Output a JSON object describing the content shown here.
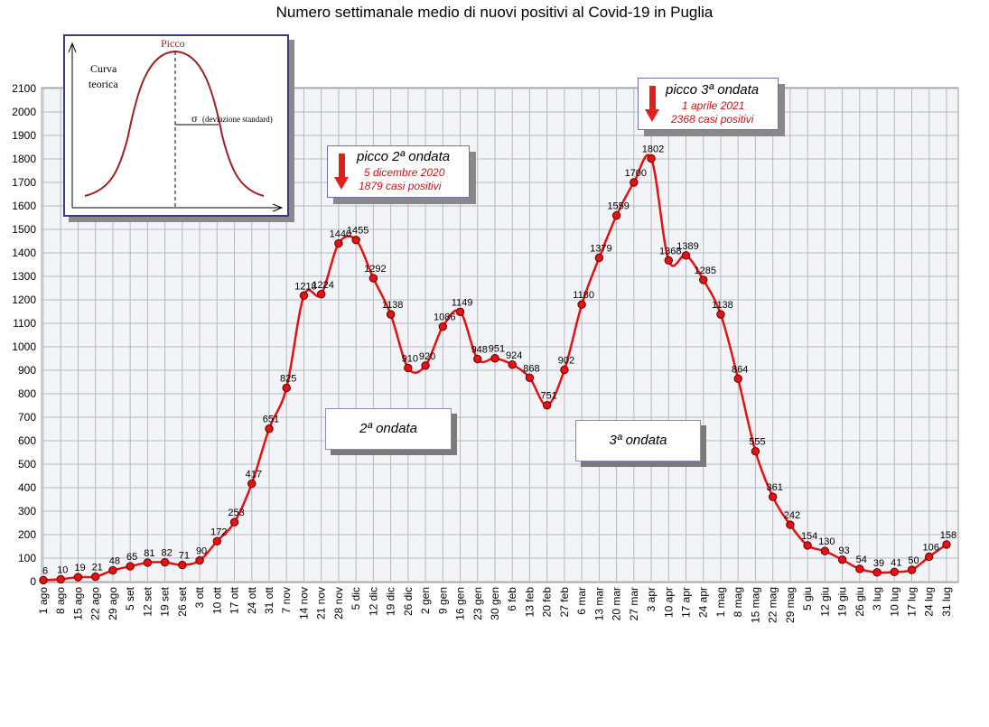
{
  "title": "Numero settimanale medio di nuovi positivi al Covid-19 in Puglia",
  "chart_data": {
    "type": "line",
    "title": "Numero settimanale medio di nuovi positivi al Covid-19 in Puglia",
    "xlabel": "",
    "ylabel": "",
    "ylim": [
      0,
      2100
    ],
    "yticks": [
      0,
      100,
      200,
      300,
      400,
      500,
      600,
      700,
      800,
      900,
      1000,
      1100,
      1200,
      1300,
      1400,
      1500,
      1600,
      1700,
      1800,
      1900,
      2000,
      2100
    ],
    "grid": true,
    "categories": [
      "1 ago",
      "8 ago",
      "15 ago",
      "22 ago",
      "29 ago",
      "5 set",
      "12 set",
      "19 set",
      "26 set",
      "3 ott",
      "10 ott",
      "17 ott",
      "24 ott",
      "31 ott",
      "7 nov",
      "14 nov",
      "21 nov",
      "28 nov",
      "5 dic",
      "12 dic",
      "19 dic",
      "26 dic",
      "2 gen",
      "9 gen",
      "16 gen",
      "23 gen",
      "30 gen",
      "6 feb",
      "13 feb",
      "20 feb",
      "27 feb",
      "6 mar",
      "13 mar",
      "20 mar",
      "27 mar",
      "3 apr",
      "10 apr",
      "17 apr",
      "24 apr",
      "1 mag",
      "8 mag",
      "15 mag",
      "22 mag",
      "29 mag",
      "5 giu",
      "12 giu",
      "19 giu",
      "26 giu",
      "3 lug",
      "10 lug",
      "17 lug",
      "24 lug",
      "31 lug"
    ],
    "series": [
      {
        "values": [
          6,
          10,
          19,
          21,
          48,
          65,
          81,
          82,
          71,
          90,
          172,
          253,
          417,
          651,
          825,
          1218,
          1224,
          1440,
          1455,
          1292,
          1138,
          910,
          920,
          1086,
          1149,
          948,
          951,
          924,
          868,
          751,
          902,
          1180,
          1379,
          1559,
          1700,
          1802,
          1368,
          1389,
          1285,
          1138,
          864,
          555,
          361,
          242,
          154,
          130,
          93,
          54,
          39,
          41,
          50,
          106,
          158
        ],
        "color": "#e81010"
      }
    ],
    "annotations": [
      {
        "title": "picco 2ª ondata",
        "line1": "5 dicembre 2020",
        "line2": "1879 casi positivi"
      },
      {
        "title": "picco 3ª ondata",
        "line1": "1 aprile 2021",
        "line2": "2368 casi positivi"
      },
      {
        "label": "2ª ondata"
      },
      {
        "label": "3ª ondata"
      }
    ],
    "inset": {
      "peak_label": "Picco",
      "curve_label_1": "Curva",
      "curve_label_2": "teorica",
      "sigma_label": "σ",
      "sigma_text": "(deviazione standard)"
    }
  }
}
